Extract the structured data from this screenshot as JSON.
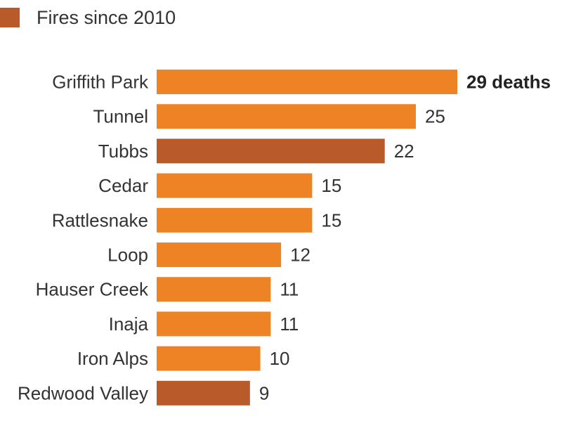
{
  "legend": {
    "label": "Fires since 2010",
    "color": "#b95a2a"
  },
  "colors": {
    "default": "#ee8326",
    "highlight": "#b95a2a"
  },
  "chart_data": {
    "type": "bar",
    "orientation": "horizontal",
    "categories": [
      "Griffith Park",
      "Tunnel",
      "Tubbs",
      "Cedar",
      "Rattlesnake",
      "Loop",
      "Hauser Creek",
      "Inaja",
      "Iron Alps",
      "Redwood Valley"
    ],
    "values": [
      29,
      25,
      22,
      15,
      15,
      12,
      11,
      11,
      10,
      9
    ],
    "value_labels": [
      "29 deaths",
      "25",
      "22",
      "15",
      "15",
      "12",
      "11",
      "11",
      "10",
      "9"
    ],
    "since_2010": [
      false,
      false,
      true,
      false,
      false,
      false,
      false,
      false,
      false,
      true
    ],
    "xlim": [
      0,
      29
    ],
    "grid": false,
    "legend_position": "top-left"
  }
}
